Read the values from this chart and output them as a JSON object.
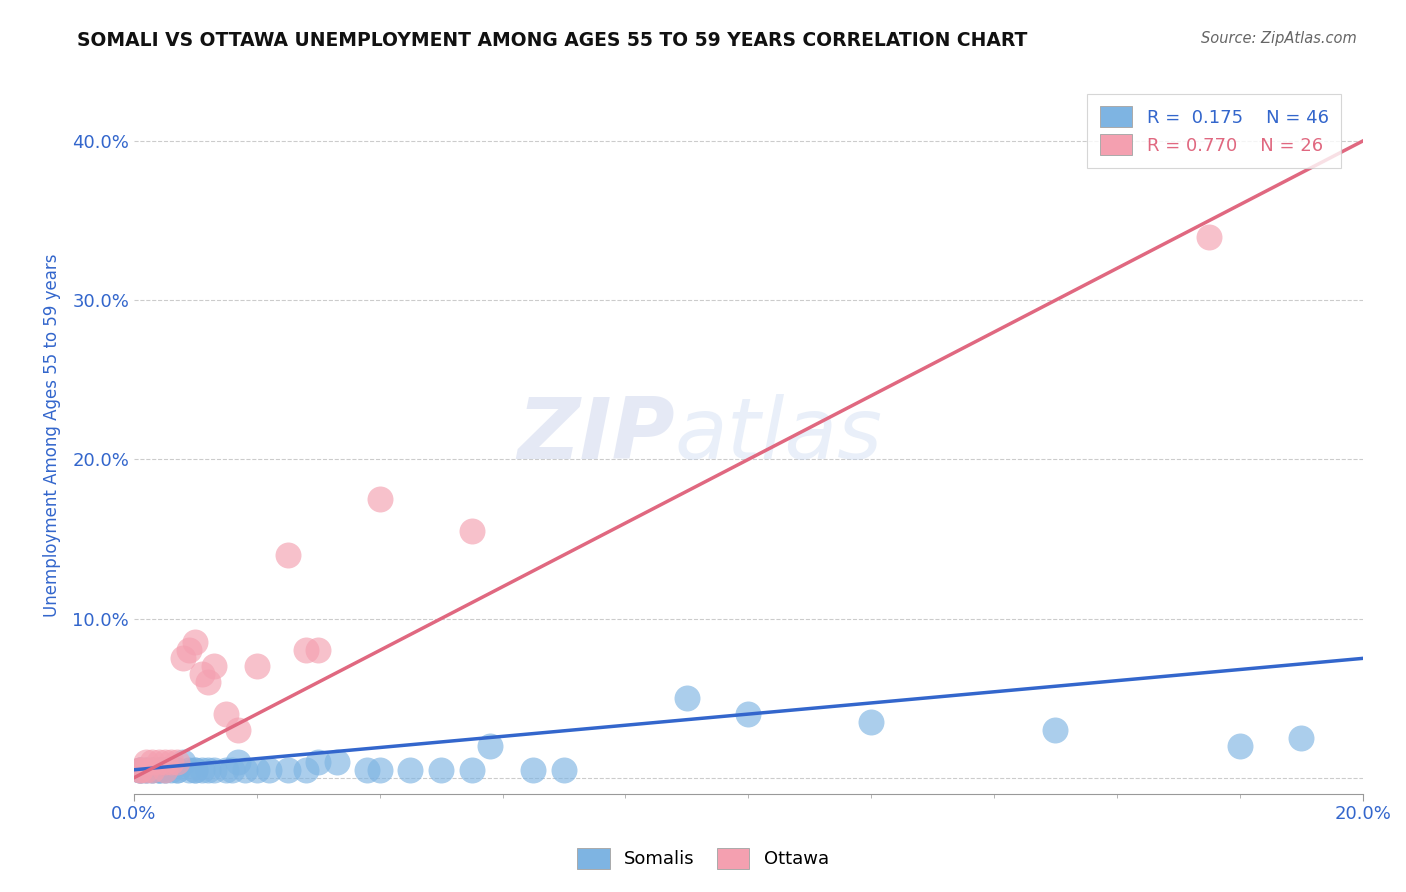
{
  "title": "SOMALI VS OTTAWA UNEMPLOYMENT AMONG AGES 55 TO 59 YEARS CORRELATION CHART",
  "source": "Source: ZipAtlas.com",
  "ylabel_label": "Unemployment Among Ages 55 to 59 years",
  "xlim": [
    0.0,
    0.2
  ],
  "ylim": [
    -0.01,
    0.44
  ],
  "yticks": [
    0.0,
    0.1,
    0.2,
    0.3,
    0.4
  ],
  "xticks": [
    0.0,
    0.2
  ],
  "x_tick_labels": [
    "0.0%",
    "20.0%"
  ],
  "y_tick_labels": [
    "",
    "10.0%",
    "20.0%",
    "30.0%",
    "40.0%"
  ],
  "grid_color": "#cccccc",
  "background_color": "#ffffff",
  "somalis_color": "#7eb4e2",
  "ottawa_color": "#f4a0b0",
  "somalis_line_color": "#3366cc",
  "ottawa_line_color": "#e06880",
  "legend_r_somalis": "R =  0.175",
  "legend_n_somalis": "N = 46",
  "legend_r_ottawa": "R = 0.770",
  "legend_n_ottawa": "N = 26",
  "somalis_x": [
    0.001,
    0.001,
    0.001,
    0.002,
    0.002,
    0.003,
    0.003,
    0.004,
    0.004,
    0.004,
    0.005,
    0.005,
    0.006,
    0.007,
    0.007,
    0.008,
    0.009,
    0.01,
    0.01,
    0.011,
    0.012,
    0.013,
    0.015,
    0.016,
    0.017,
    0.018,
    0.02,
    0.022,
    0.025,
    0.028,
    0.03,
    0.033,
    0.038,
    0.04,
    0.045,
    0.05,
    0.055,
    0.058,
    0.065,
    0.07,
    0.09,
    0.1,
    0.12,
    0.15,
    0.18,
    0.19
  ],
  "somalis_y": [
    0.005,
    0.005,
    0.005,
    0.005,
    0.005,
    0.005,
    0.005,
    0.005,
    0.005,
    0.005,
    0.005,
    0.005,
    0.005,
    0.005,
    0.005,
    0.01,
    0.005,
    0.005,
    0.005,
    0.005,
    0.005,
    0.005,
    0.005,
    0.005,
    0.01,
    0.005,
    0.005,
    0.005,
    0.005,
    0.005,
    0.01,
    0.01,
    0.005,
    0.005,
    0.005,
    0.005,
    0.005,
    0.02,
    0.005,
    0.005,
    0.05,
    0.04,
    0.035,
    0.03,
    0.02,
    0.025
  ],
  "ottawa_x": [
    0.001,
    0.001,
    0.002,
    0.002,
    0.003,
    0.003,
    0.004,
    0.005,
    0.005,
    0.006,
    0.007,
    0.008,
    0.009,
    0.01,
    0.011,
    0.012,
    0.013,
    0.015,
    0.017,
    0.02,
    0.025,
    0.028,
    0.03,
    0.04,
    0.055,
    0.175
  ],
  "ottawa_y": [
    0.005,
    0.005,
    0.005,
    0.01,
    0.005,
    0.01,
    0.01,
    0.005,
    0.01,
    0.01,
    0.01,
    0.075,
    0.08,
    0.085,
    0.065,
    0.06,
    0.07,
    0.04,
    0.03,
    0.07,
    0.14,
    0.08,
    0.08,
    0.175,
    0.155,
    0.34
  ],
  "somali_line_x": [
    0.0,
    0.2
  ],
  "somali_line_y": [
    0.005,
    0.075
  ],
  "ottawa_line_x": [
    0.0,
    0.2
  ],
  "ottawa_line_y": [
    0.0,
    0.4
  ],
  "watermark_zip": "ZIP",
  "watermark_atlas": "atlas",
  "title_color": "#111111",
  "tick_label_color": "#3366cc"
}
